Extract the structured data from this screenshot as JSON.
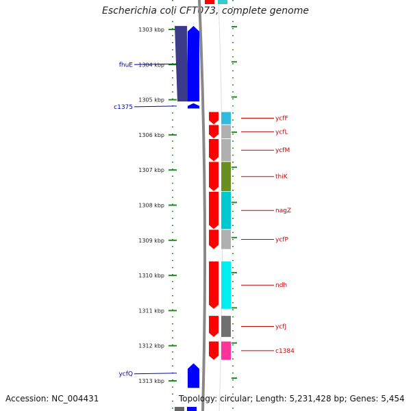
{
  "title": "Escherichia coli CFT073, complete genome",
  "footer": {
    "accession": "Accession: NC_004431",
    "topology": "Topology: circular; Length: 5,231,428 bp; Genes: 5,454"
  },
  "ruler": {
    "labels": [
      "1303 kbp",
      "1304 kbp",
      "1305 kbp",
      "1306 kbp",
      "1307 kbp",
      "1308 kbp",
      "1309 kbp",
      "1310 kbp",
      "1311 kbp",
      "1312 kbp",
      "1313 kbp"
    ],
    "start_kbp": 1303,
    "end_kbp": 1313
  },
  "genes_left": [
    {
      "name": "fhuE",
      "start": 1302.9,
      "end": 1305.05,
      "strand": "+",
      "track": "outer",
      "color": "#3b3b8a"
    },
    {
      "name": "",
      "start": 1302.9,
      "end": 1305.05,
      "strand": "+",
      "track": "inner",
      "color": "#0000ff"
    },
    {
      "name": "c1375",
      "start": 1305.1,
      "end": 1305.25,
      "strand": "+",
      "track": "inner",
      "color": "#0000ff"
    },
    {
      "name": "ycfQ",
      "start": 1312.5,
      "end": 1313.2,
      "strand": "+",
      "track": "inner",
      "color": "#0000ff"
    }
  ],
  "genes_right": [
    {
      "name": "ycfF",
      "start": 1305.35,
      "end": 1305.7,
      "cog_color": "#33bbdd"
    },
    {
      "name": "ycfL",
      "start": 1305.72,
      "end": 1306.1,
      "cog_color": "#b0b0b0"
    },
    {
      "name": "ycfM",
      "start": 1306.12,
      "end": 1306.75,
      "cog_color": "#b0b0b0"
    },
    {
      "name": "thiK",
      "start": 1306.77,
      "end": 1307.6,
      "cog_color": "#6b8e23"
    },
    {
      "name": "nagZ",
      "start": 1307.62,
      "end": 1308.68,
      "cog_color": "#00c8d0"
    },
    {
      "name": "ycfP",
      "start": 1308.7,
      "end": 1309.25,
      "cog_color": "#b0b0b0"
    },
    {
      "name": "ndh",
      "start": 1309.6,
      "end": 1310.95,
      "cog_color": "#00eef0"
    },
    {
      "name": "ycfJ",
      "start": 1311.15,
      "end": 1311.75,
      "cog_color": "#707070"
    },
    {
      "name": "c1384",
      "start": 1311.88,
      "end": 1312.4,
      "cog_color": "#ff3399"
    }
  ],
  "colors": {
    "ruler_tick": "#228b22",
    "backbone": "#888888",
    "forward_gene": "#0000ff",
    "reverse_gene": "#ff0000",
    "label_blue": "#0000aa",
    "label_red": "#cc0000"
  }
}
